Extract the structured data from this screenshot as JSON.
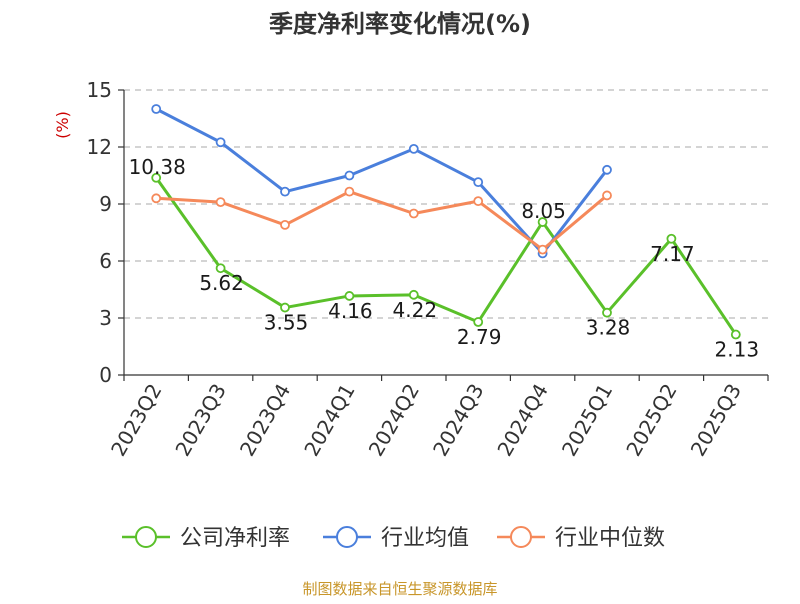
{
  "chart_data": {
    "type": "line",
    "title": "季度净利率变化情况(%)",
    "ylabel": "(%)",
    "xlabel": "",
    "categories": [
      "2023Q2",
      "2023Q3",
      "2023Q4",
      "2024Q1",
      "2024Q2",
      "2024Q3",
      "2024Q4",
      "2025Q1",
      "2025Q2",
      "2025Q3"
    ],
    "ylim": [
      0,
      15
    ],
    "yticks": [
      0,
      3,
      6,
      9,
      12,
      15
    ],
    "grid": true,
    "legend_position": "bottom",
    "series": [
      {
        "name": "公司净利率",
        "color": "#5ac02a",
        "values": [
          10.38,
          5.62,
          3.55,
          4.16,
          4.22,
          2.79,
          8.05,
          3.28,
          7.17,
          2.13
        ],
        "labels": [
          "10.38",
          "5.62",
          "3.55",
          "4.16",
          "4.22",
          "2.79",
          "8.05",
          "3.28",
          "7.17",
          "2.13"
        ]
      },
      {
        "name": "行业均值",
        "color": "#4a7fdc",
        "values": [
          14.0,
          12.25,
          9.65,
          10.5,
          11.9,
          10.15,
          6.4,
          10.8,
          null,
          null
        ]
      },
      {
        "name": "行业中位数",
        "color": "#f5895a",
        "values": [
          9.3,
          9.1,
          7.9,
          9.65,
          8.5,
          9.15,
          6.6,
          9.45,
          null,
          null
        ]
      }
    ]
  },
  "source_text": "制图数据来自恒生聚源数据库",
  "colors": {
    "title": "#333333",
    "axis": "#333333",
    "grid": "#bbbbbb",
    "ylabel": "#cc0000",
    "source": "#c8962a"
  }
}
